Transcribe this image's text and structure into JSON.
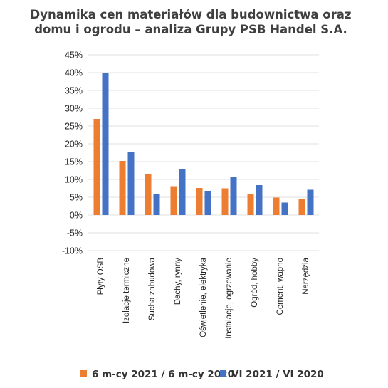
{
  "chart_data": {
    "type": "bar",
    "title_lines": [
      "Dynamika cen materiałów dla budownictwa oraz",
      "domu i ogrodu – analiza Grupy PSB Handel S.A."
    ],
    "categories": [
      "Płyty OSB",
      "Izolacje termiczne",
      "Sucha zabudowa",
      "Dachy, rynny",
      "Oświetlenie, elektryka",
      "Instalacje, ogrzewanie",
      "Ogród, hobby",
      "Cement, wapno",
      "Narzędzia"
    ],
    "series": [
      {
        "name": "6 m-cy 2021 / 6 m-cy 2020",
        "color": "#ed7d31",
        "values": [
          27,
          15.2,
          11.5,
          8.1,
          7.6,
          7.5,
          6.0,
          4.9,
          4.6
        ]
      },
      {
        "name": "VI 2021 / VI 2020",
        "color": "#4472c4",
        "values": [
          40,
          17.6,
          5.9,
          13.0,
          6.8,
          10.7,
          8.4,
          3.5,
          7.1
        ]
      }
    ],
    "y_ticks": [
      "45%",
      "40%",
      "35%",
      "30%",
      "25%",
      "20%",
      "15%",
      "10%",
      "5%",
      "0%",
      "-5%",
      "-10%"
    ],
    "ylim": [
      -10,
      45
    ],
    "grid": true,
    "legend_position": "bottom"
  }
}
